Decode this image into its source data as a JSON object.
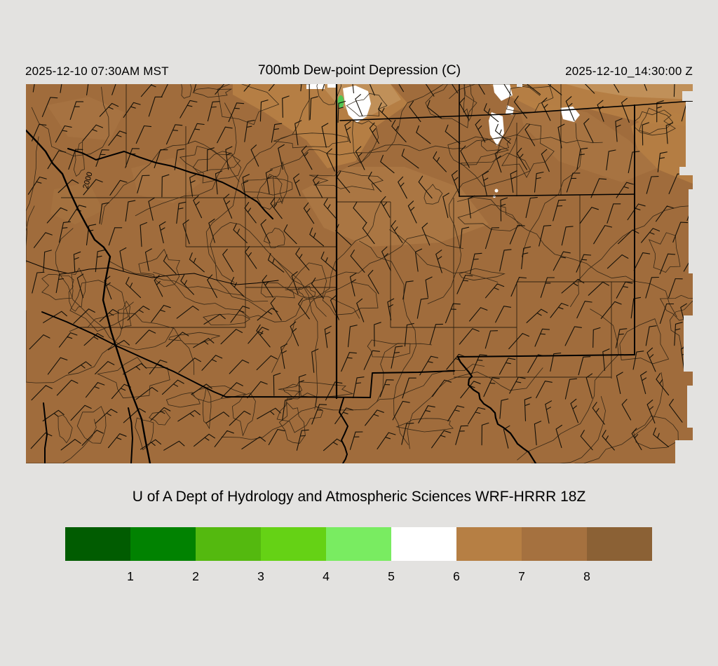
{
  "header": {
    "left_timestamp": "2025-12-10 07:30AM MST",
    "title": "700mb Dew-point Depression (C)",
    "right_timestamp": "2025-12-10_14:30:00 Z"
  },
  "caption": "U of A Dept of Hydrology and Atmospheric Sciences WRF-HRRR 18Z",
  "colorbar": {
    "tick_labels": [
      "1",
      "2",
      "3",
      "4",
      "5",
      "6",
      "7",
      "8"
    ],
    "segment_colors": [
      "#015c01",
      "#018201",
      "#54b90f",
      "#65d215",
      "#79ec61",
      "#ffffff",
      "#b67f44",
      "#a5713f",
      "#8b6135"
    ],
    "units": "C"
  },
  "map": {
    "background_color": "#e3e2e0",
    "base_fill": "#a06c3c",
    "tan_patch": "#b67f44",
    "light_tan_patch": "#c09059",
    "subtle_patch": "#ad7a46",
    "white_patch": "#ffffff",
    "green_patch": "#53c654",
    "contour_color": "#2b2012",
    "county_line_color": "#241a0c",
    "boundary_color": "#000000",
    "barb_color": "#141008",
    "contour_label": "2000"
  }
}
